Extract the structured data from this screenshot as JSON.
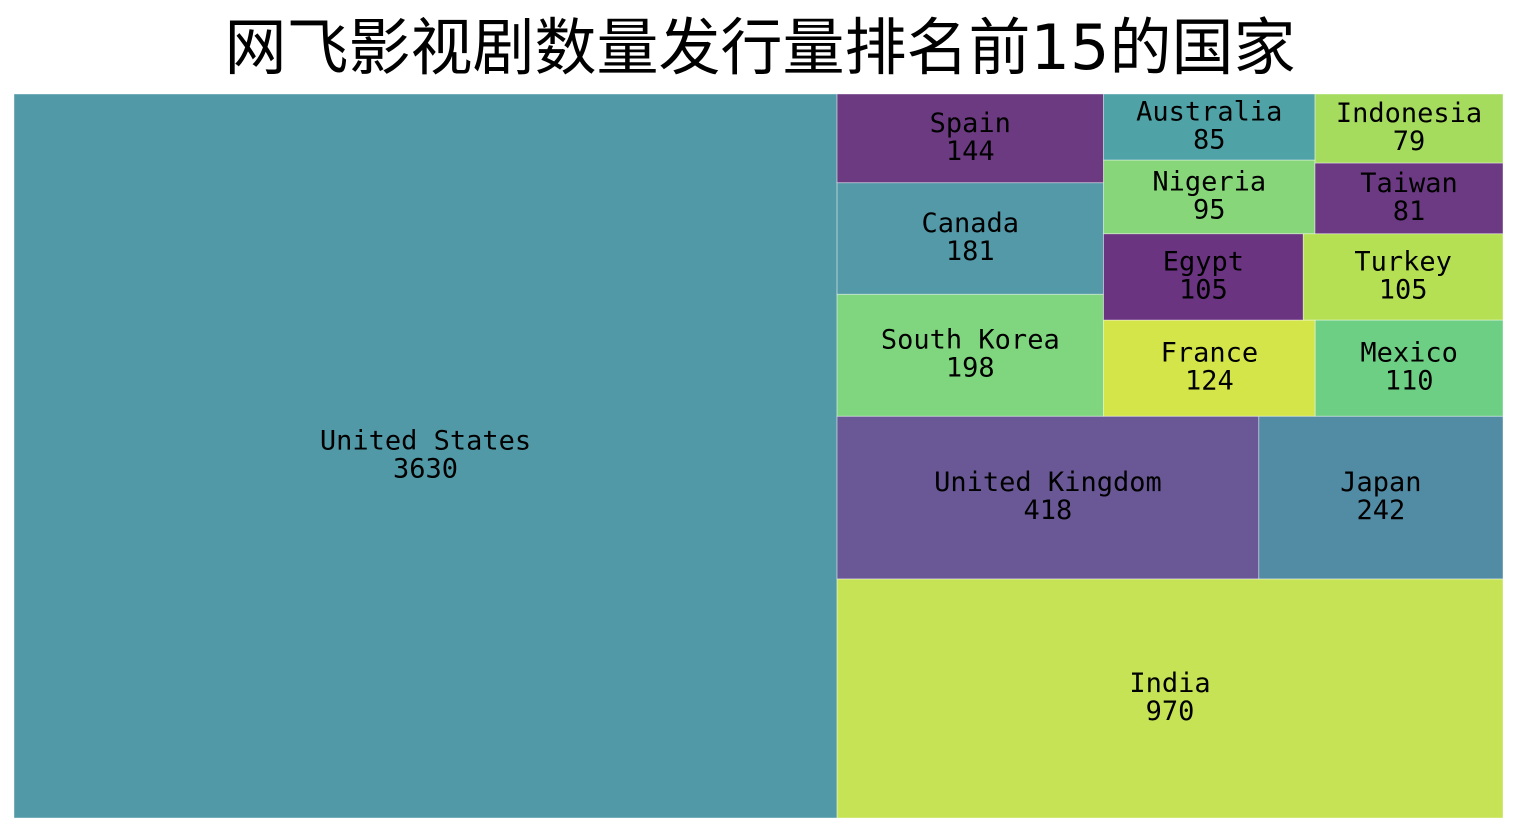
{
  "chart_data": {
    "type": "treemap",
    "title": "网飞影视剧数量发行量排名前15的国家",
    "categories": [
      "United States",
      "India",
      "United Kingdom",
      "Japan",
      "South Korea",
      "Canada",
      "Spain",
      "France",
      "Mexico",
      "Egypt",
      "Turkey",
      "Nigeria",
      "Australia",
      "Taiwan",
      "Indonesia"
    ],
    "values": [
      3630,
      970,
      418,
      242,
      198,
      181,
      144,
      124,
      110,
      105,
      105,
      95,
      85,
      81,
      79
    ],
    "colors": [
      "#5199a6",
      "#c5e354",
      "#6a5896",
      "#528ba4",
      "#7fd67e",
      "#5399a8",
      "#6b3a81",
      "#d4e549",
      "#6dcf83",
      "#6a3480",
      "#b5e053",
      "#87d77a",
      "#4fa2a6",
      "#6c3a82",
      "#a5dc5e"
    ]
  }
}
